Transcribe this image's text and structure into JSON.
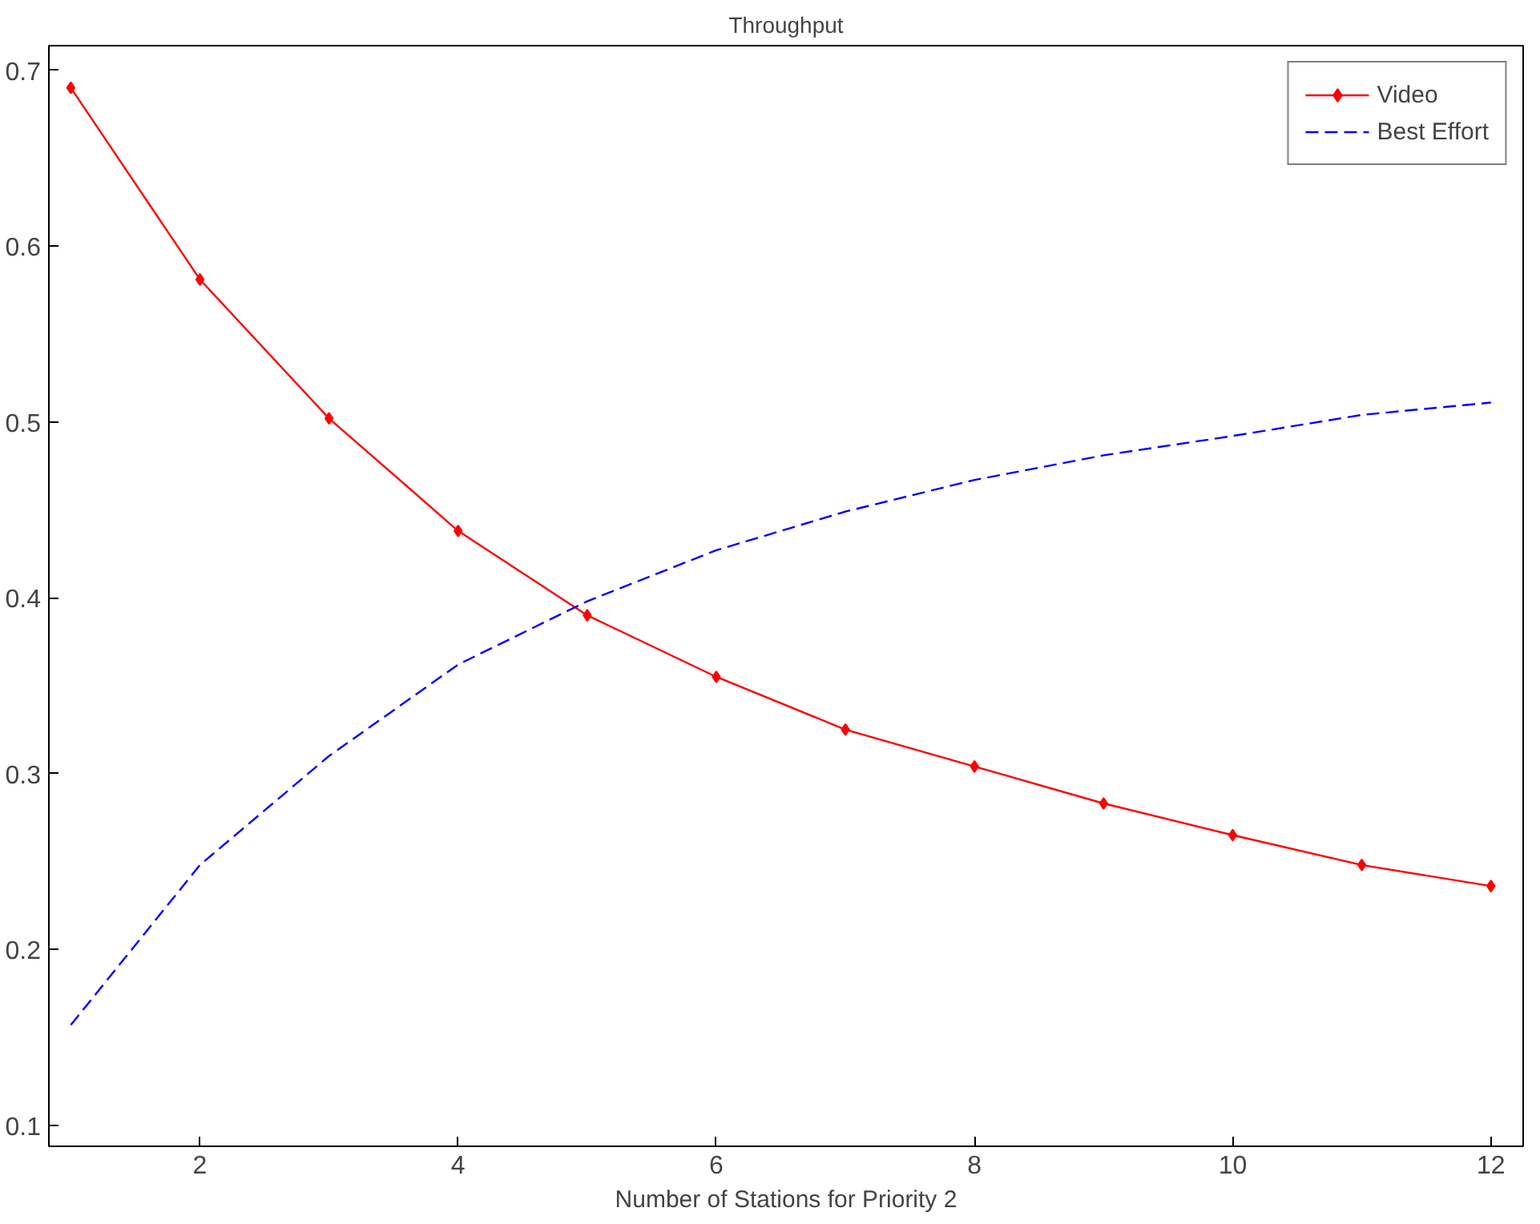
{
  "chart_data": {
    "type": "line",
    "title": "Throughput",
    "xlabel": "Number of Stations for Priority 2",
    "x": [
      1,
      2,
      3,
      4,
      5,
      6,
      7,
      8,
      9,
      10,
      11,
      12
    ],
    "xlim": [
      0.83,
      12.25
    ],
    "xticks": [
      2,
      4,
      6,
      8,
      10,
      12
    ],
    "ylim": [
      0.088,
      0.714
    ],
    "yticks": [
      0.1,
      0.2,
      0.3,
      0.4,
      0.5,
      0.6,
      0.7
    ],
    "grid": false,
    "legend": "top right",
    "series": [
      {
        "name": "Video",
        "color": "#ff0000",
        "marker": "diamond",
        "line_style": "solid",
        "values": [
          0.69,
          0.581,
          0.502,
          0.438,
          0.39,
          0.355,
          0.325,
          0.304,
          0.283,
          0.265,
          0.248,
          0.236
        ]
      },
      {
        "name": "Best Effort",
        "color": "#0000ff",
        "marker": "none",
        "line_style": "dashed",
        "values": [
          0.157,
          0.248,
          0.31,
          0.362,
          0.398,
          0.427,
          0.449,
          0.467,
          0.481,
          0.492,
          0.504,
          0.511
        ]
      }
    ]
  }
}
